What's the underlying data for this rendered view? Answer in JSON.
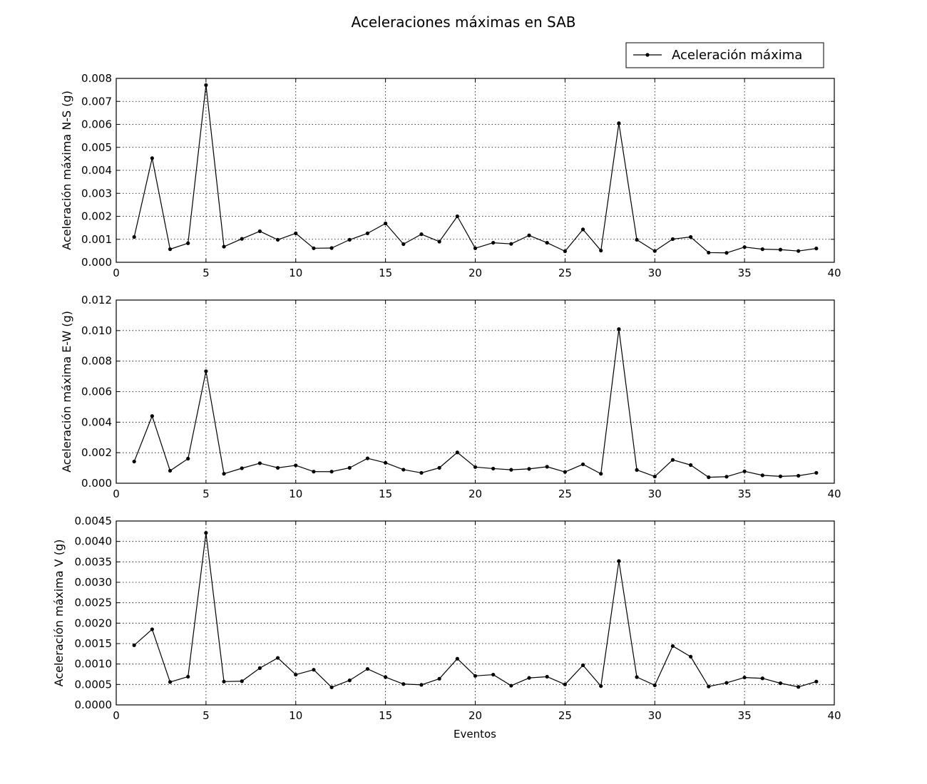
{
  "figure": {
    "title": "Aceleraciones máximas en SAB",
    "legend_label": "Aceleración máxima",
    "legend_position": "top-right",
    "xlabel": "Eventos"
  },
  "chart_data": [
    {
      "type": "line",
      "ylabel": "Aceleración máxima N-S (g)",
      "xlim": [
        0,
        40
      ],
      "ylim": [
        0,
        0.008
      ],
      "grid": true,
      "xticks": [
        "0",
        "5",
        "10",
        "15",
        "20",
        "25",
        "30",
        "35",
        "40"
      ],
      "yticks": [
        "0.000",
        "0.001",
        "0.002",
        "0.003",
        "0.004",
        "0.005",
        "0.006",
        "0.007",
        "0.008"
      ],
      "x": [
        1,
        2,
        3,
        4,
        5,
        6,
        7,
        8,
        9,
        10,
        11,
        12,
        13,
        14,
        15,
        16,
        17,
        18,
        19,
        20,
        21,
        22,
        23,
        24,
        25,
        26,
        27,
        28,
        29,
        30,
        31,
        32,
        33,
        34,
        35,
        36,
        37,
        38,
        39
      ],
      "series": [
        {
          "name": "Aceleración máxima",
          "color": "#000000",
          "values": [
            0.0011,
            0.00453,
            0.00057,
            0.00083,
            0.00771,
            0.00068,
            0.00102,
            0.00135,
            0.00098,
            0.00126,
            0.00061,
            0.00062,
            0.00098,
            0.00126,
            0.00169,
            0.00079,
            0.00122,
            0.0009,
            0.002,
            0.00061,
            0.00085,
            0.0008,
            0.00117,
            0.00085,
            0.00048,
            0.00143,
            0.00051,
            0.00605,
            0.00098,
            0.00049,
            0.00101,
            0.0011,
            0.00042,
            0.00041,
            0.00066,
            0.00057,
            0.00055,
            0.00049,
            0.0006
          ]
        }
      ]
    },
    {
      "type": "line",
      "ylabel": "Aceleración máxima E-W (g)",
      "xlim": [
        0,
        40
      ],
      "ylim": [
        0,
        0.012
      ],
      "grid": true,
      "xticks": [
        "0",
        "5",
        "10",
        "15",
        "20",
        "25",
        "30",
        "35",
        "40"
      ],
      "yticks": [
        "0.000",
        "0.002",
        "0.004",
        "0.006",
        "0.008",
        "0.010",
        "0.012"
      ],
      "x": [
        1,
        2,
        3,
        4,
        5,
        6,
        7,
        8,
        9,
        10,
        11,
        12,
        13,
        14,
        15,
        16,
        17,
        18,
        19,
        20,
        21,
        22,
        23,
        24,
        25,
        26,
        27,
        28,
        29,
        30,
        31,
        32,
        33,
        34,
        35,
        36,
        37,
        38,
        39
      ],
      "series": [
        {
          "name": "Aceleración máxima",
          "color": "#000000",
          "values": [
            0.00142,
            0.0044,
            0.00082,
            0.00161,
            0.00734,
            0.00062,
            0.00098,
            0.00131,
            0.00101,
            0.00117,
            0.00076,
            0.00076,
            0.00101,
            0.00163,
            0.00134,
            0.00089,
            0.00068,
            0.00101,
            0.00202,
            0.00106,
            0.00096,
            0.00088,
            0.00094,
            0.00108,
            0.00074,
            0.00124,
            0.00062,
            0.0101,
            0.00087,
            0.00044,
            0.00153,
            0.00119,
            0.00039,
            0.00043,
            0.00078,
            0.00052,
            0.00045,
            0.00049,
            0.00068
          ]
        }
      ]
    },
    {
      "type": "line",
      "ylabel": "Aceleración máxima V (g)",
      "xlabel": "Eventos",
      "xlim": [
        0,
        40
      ],
      "ylim": [
        0,
        0.0045
      ],
      "grid": true,
      "xticks": [
        "0",
        "5",
        "10",
        "15",
        "20",
        "25",
        "30",
        "35",
        "40"
      ],
      "yticks": [
        "0.0000",
        "0.0005",
        "0.0010",
        "0.0015",
        "0.0020",
        "0.0025",
        "0.0030",
        "0.0035",
        "0.0040",
        "0.0045"
      ],
      "x": [
        1,
        2,
        3,
        4,
        5,
        6,
        7,
        8,
        9,
        10,
        11,
        12,
        13,
        14,
        15,
        16,
        17,
        18,
        19,
        20,
        21,
        22,
        23,
        24,
        25,
        26,
        27,
        28,
        29,
        30,
        31,
        32,
        33,
        34,
        35,
        36,
        37,
        38,
        39
      ],
      "series": [
        {
          "name": "Aceleración máxima",
          "color": "#000000",
          "values": [
            0.00146,
            0.00185,
            0.00056,
            0.00069,
            0.00421,
            0.00057,
            0.00058,
            0.0009,
            0.00115,
            0.00074,
            0.00086,
            0.00043,
            0.0006,
            0.00088,
            0.00068,
            0.00051,
            0.00049,
            0.00064,
            0.00113,
            0.00071,
            0.00074,
            0.00047,
            0.00066,
            0.00069,
            0.0005,
            0.00097,
            0.00046,
            0.00352,
            0.00068,
            0.00048,
            0.00144,
            0.00118,
            0.00045,
            0.00054,
            0.00067,
            0.00065,
            0.00053,
            0.00044,
            0.00057
          ]
        }
      ]
    }
  ]
}
